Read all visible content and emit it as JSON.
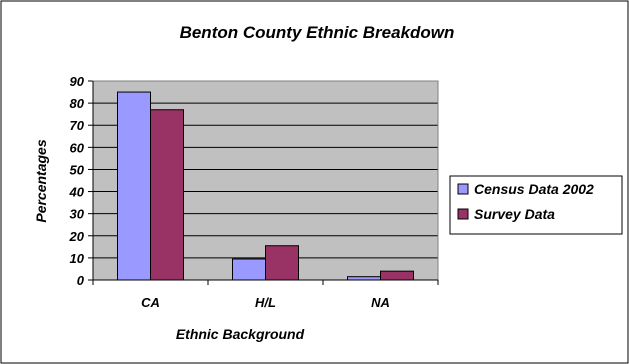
{
  "chart_data": {
    "type": "bar",
    "title": "Benton County Ethnic Breakdown",
    "xlabel": "Ethnic Background",
    "ylabel": "Percentages",
    "categories": [
      "CA",
      "H/L",
      "NA"
    ],
    "series": [
      {
        "name": "Census Data 2002",
        "values": [
          85,
          9.5,
          1.5
        ],
        "color": "#9999ff"
      },
      {
        "name": "Survey Data",
        "values": [
          77,
          15.5,
          4
        ],
        "color": "#993366"
      }
    ],
    "ylim": [
      0,
      90
    ],
    "yticks": [
      0,
      10,
      20,
      30,
      40,
      50,
      60,
      70,
      80,
      90
    ],
    "grid": true,
    "plot_background": "#c0c0c0",
    "legend_position": "right"
  }
}
